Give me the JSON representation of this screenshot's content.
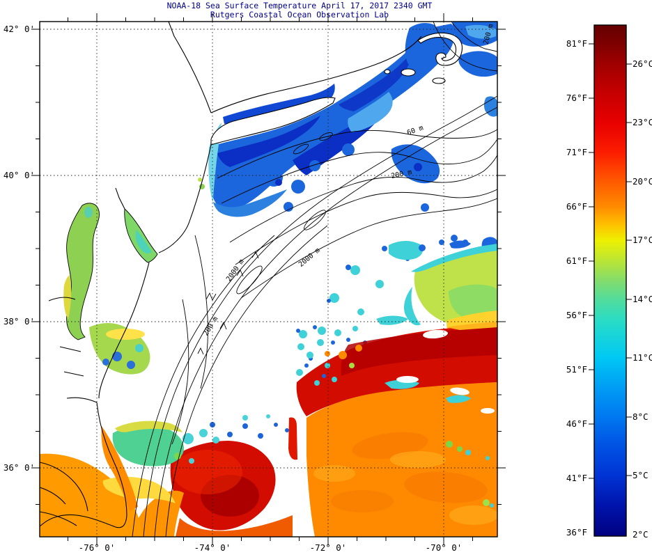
{
  "header": {
    "title_line1": "NOAA-18 Sea Surface Temperature April 17, 2017 2340 GMT",
    "title_line2": "Rutgers Coastal Ocean Observation Lab",
    "title_color": "#00008B"
  },
  "axes": {
    "latitude_labels": [
      "42° 0'",
      "40° 0'",
      "38° 0'",
      "36° 0'"
    ],
    "longitude_labels": [
      "-76° 0'",
      "-74° 0'",
      "-72° 0'",
      "-70° 0'"
    ]
  },
  "colorbar": {
    "fahrenheit_labels": [
      "81°F",
      "76°F",
      "71°F",
      "66°F",
      "61°F",
      "56°F",
      "51°F",
      "46°F",
      "41°F",
      "36°F"
    ],
    "celsius_labels": [
      "26°C",
      "23°C",
      "20°C",
      "17°C",
      "14°C",
      "11°C",
      "8°C",
      "5°C",
      "2°C"
    ],
    "gradient_top_to_bottom": [
      "#640000",
      "#7E0000",
      "#A00000",
      "#E80000",
      "#FF5A00",
      "#FF8C00",
      "#FFC000",
      "#EEF000",
      "#BCE634",
      "#84DC6C",
      "#52DC9C",
      "#28DCC8",
      "#00C8F4",
      "#0078F0",
      "#0034D4",
      "#000080"
    ]
  },
  "map": {
    "contour_labels": [
      "60 m",
      "200 m",
      "2000 m",
      "200 m",
      "2000 m",
      "200 m"
    ],
    "land_cloud_color": "#FFFFFF",
    "coastline_color": "#000000",
    "cold_water_color": "#1B66DC",
    "estuary_color": "#8ED052",
    "eddy_color": "#BFE24A",
    "gulf_stream_color": "#D30C00",
    "warm_water_color": "#FF8A00"
  }
}
